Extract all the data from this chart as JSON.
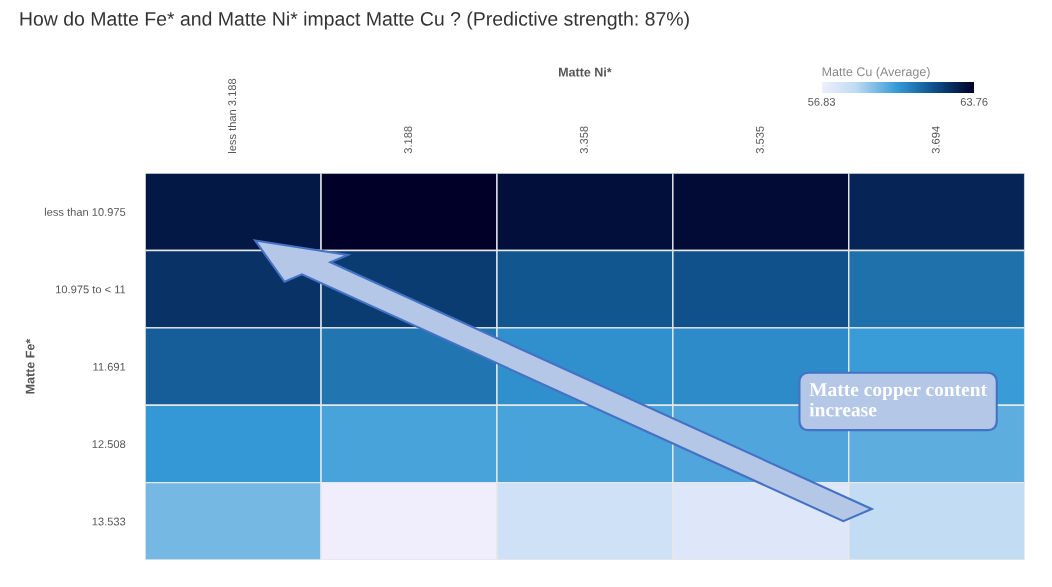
{
  "chart_data": {
    "type": "heatmap",
    "title": "How do Matte Fe* and Matte Ni* impact Matte Cu ? (Predictive strength: 87%)",
    "xlabel": "Matte Ni*",
    "ylabel": "Matte Fe*",
    "clabel": "Matte Cu (Average)",
    "categories": [
      "less than 3.188",
      "3.188",
      "3.358",
      "3.535",
      "3.694"
    ],
    "y_categories": [
      "less than 10.975",
      "10.975 to < 11",
      "11.691",
      "12.508",
      "13.533"
    ],
    "cells": [
      [
        63.2,
        63.76,
        63.4,
        63.5,
        62.9
      ],
      [
        62.6,
        62.4,
        61.8,
        61.9,
        61.2
      ],
      [
        61.6,
        61.1,
        60.5,
        60.6,
        60.2
      ],
      [
        60.3,
        60.0,
        60.0,
        59.9,
        59.7
      ],
      [
        59.4,
        56.83,
        57.9,
        57.4,
        58.3
      ]
    ],
    "clim": [
      56.83,
      63.76
    ],
    "cticks": [
      56.83,
      63.76
    ],
    "annotations": [
      "Matte copper content increase"
    ]
  }
}
